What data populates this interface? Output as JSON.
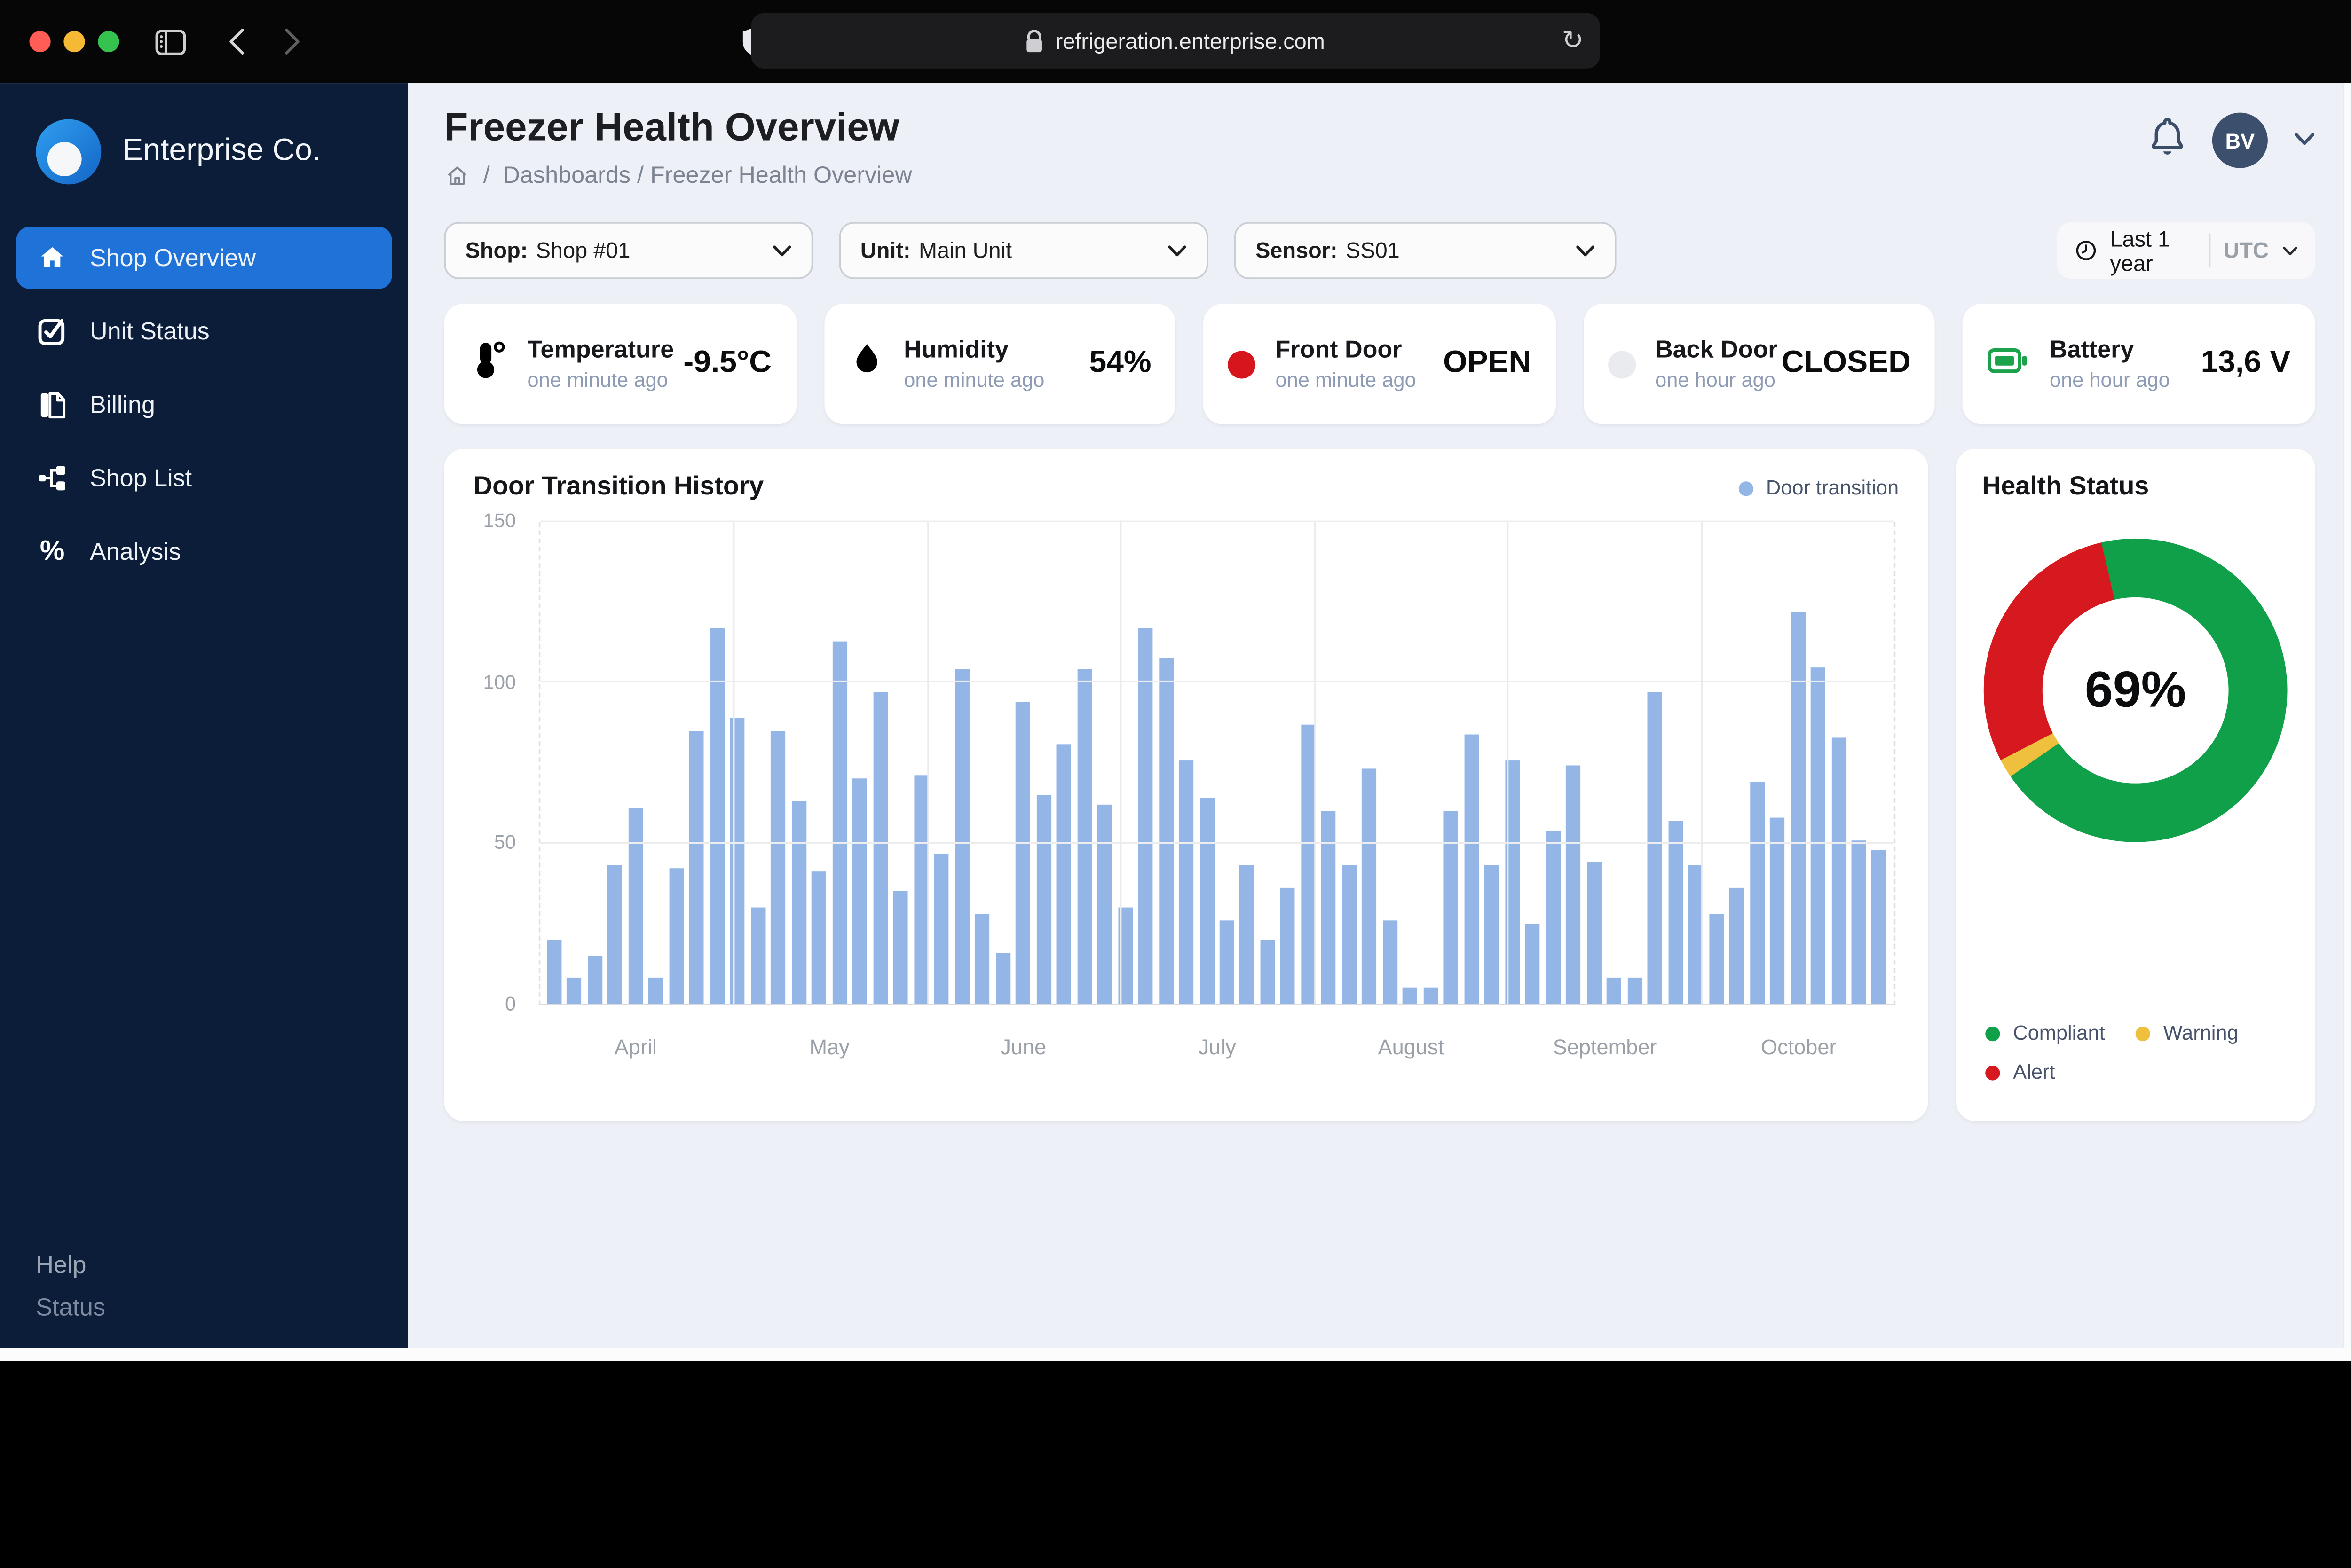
{
  "browser": {
    "url": "refrigeration.enterprise.com",
    "reload_glyph": "↻"
  },
  "sidebar": {
    "brand": "Enterprise Co.",
    "items": [
      {
        "label": "Shop Overview",
        "icon": "home-icon",
        "active": true
      },
      {
        "label": "Unit Status",
        "icon": "check-square-icon",
        "active": false
      },
      {
        "label": "Billing",
        "icon": "invoice-icon",
        "active": false
      },
      {
        "label": "Shop List",
        "icon": "hierarchy-icon",
        "active": false
      },
      {
        "label": "Analysis",
        "icon": "percent-icon",
        "active": false
      }
    ],
    "percent_glyph": "%",
    "footer": {
      "help": "Help",
      "status": "Status"
    }
  },
  "header": {
    "title": "Freezer Health Overview",
    "breadcrumb_sep": "/",
    "breadcrumb": "Dashboards / Freezer Health Overview",
    "avatar_initials": "BV"
  },
  "filters": {
    "shop_label": "Shop:",
    "shop_value": "Shop #01",
    "unit_label": "Unit:",
    "unit_value": "Main Unit",
    "sensor_label": "Sensor:",
    "sensor_value": "SS01",
    "range_value": "Last 1 year",
    "timezone_value": "UTC"
  },
  "kpis": [
    {
      "icon": "thermometer-icon",
      "title": "Temperature",
      "time": "one minute ago",
      "value": "-9.5°C"
    },
    {
      "icon": "droplet-icon",
      "title": "Humidity",
      "time": "one minute ago",
      "value": "54%"
    },
    {
      "icon": "red-status-dot-icon",
      "title": "Front Door",
      "time": "one minute ago",
      "value": "OPEN"
    },
    {
      "icon": "gray-status-dot-icon",
      "title": "Back Door",
      "time": "one hour ago",
      "value": "CLOSED"
    },
    {
      "icon": "battery-icon",
      "title": "Battery",
      "time": "one hour ago",
      "value": "13,6 V"
    }
  ],
  "colors": {
    "accent_blue": "#1f72d8",
    "bar_blue": "#94b6e7",
    "compliant_green": "#11a04a",
    "warning_yellow": "#efbf3e",
    "alert_red": "#d6191f",
    "front_door_red": "#d6161c",
    "back_door_gray": "#e9ebee",
    "battery_green": "#1ba24a",
    "traffic_red": "#ff5d55",
    "traffic_yellow": "#f5b935",
    "traffic_green": "#36c24e"
  },
  "chart_data": [
    {
      "type": "bar",
      "title": "Door Transition History",
      "legend": [
        {
          "label": "Door transition",
          "color": "#94b6e7"
        }
      ],
      "legend_position": "top-right",
      "categories": [
        "April",
        "May",
        "June",
        "July",
        "August",
        "September",
        "October"
      ],
      "values": [
        20,
        8,
        15,
        43,
        61,
        8,
        42,
        85,
        117,
        89,
        30,
        85,
        63,
        41,
        113,
        70,
        97,
        35,
        71,
        47,
        104,
        28,
        16,
        94,
        65,
        81,
        104,
        62,
        30,
        117,
        108,
        76,
        64,
        26,
        43,
        20,
        36,
        87,
        60,
        43,
        73,
        26,
        5,
        5,
        60,
        84,
        43,
        76,
        25,
        54,
        74,
        44,
        8,
        8,
        97,
        57,
        43,
        28,
        36,
        69,
        58,
        122,
        105,
        83,
        51,
        48
      ],
      "xlabel": "",
      "ylabel": "",
      "ylim": [
        0,
        150
      ],
      "yticks": [
        0,
        50,
        100,
        150
      ],
      "grid": true
    },
    {
      "type": "pie",
      "donut": true,
      "title": "Health Status",
      "center_label": "69%",
      "start_angle_deg": 347,
      "slices": [
        {
          "label": "Compliant",
          "value": 69,
          "color": "#11a04a"
        },
        {
          "label": "Warning",
          "value": 2,
          "color": "#efbf3e"
        },
        {
          "label": "Alert",
          "value": 29,
          "color": "#d6191f"
        }
      ]
    }
  ]
}
